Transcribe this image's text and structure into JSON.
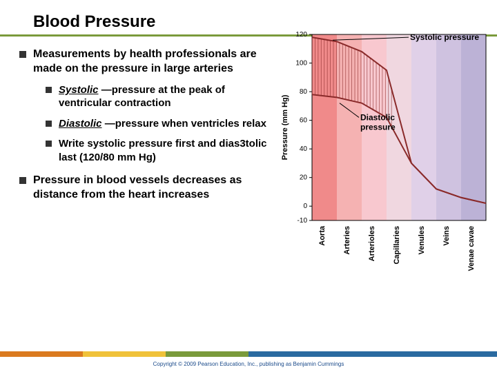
{
  "title": "Blood Pressure",
  "bullets": {
    "b1": "Measurements by health professionals are made on the pressure in large arteries",
    "b1a_term": "Systolic",
    "b1a_rest": " —pressure at the peak of ventricular contraction",
    "b1b_term": "Diastolic",
    "b1b_rest": " —pressure when ventricles relax",
    "b1c": "Write systolic pressure first and dias3tolic last (120/80 mm Hg)",
    "b2": "Pressure in blood vessels decreases as distance from the heart increases"
  },
  "chart": {
    "ylabel": "Pressure (mm Hg)",
    "yticks": [
      -10,
      0,
      20,
      40,
      60,
      80,
      100,
      120
    ],
    "ylim": [
      -10,
      120
    ],
    "xcats": [
      "Aorta",
      "Arteries",
      "Arterioles",
      "Capillaries",
      "Venules",
      "Veins",
      "Venae cavae"
    ],
    "band_colors": [
      "#f08a8a",
      "#f5b2b2",
      "#f8c8cf",
      "#f0d7e0",
      "#e0d0e8",
      "#cfc2e0",
      "#bcb2d6"
    ],
    "annot1": "Systolic pressure",
    "annot2": "Diastolic pressure",
    "systolic_line": [
      118,
      115,
      108,
      95,
      30,
      12,
      6,
      2
    ],
    "diastolic_line": [
      78,
      76,
      72,
      62,
      30,
      12,
      6,
      2
    ],
    "line_color": "#8a2a2a",
    "axis_color": "#000000",
    "tick_font": 10,
    "label_font": 11,
    "annot_font": 12
  },
  "footer": {
    "colors": [
      "#da7a1f",
      "#f0c23a",
      "#7a9a3b",
      "#2a6aa0"
    ],
    "widths": [
      120,
      120,
      120,
      360
    ],
    "copyright": "Copyright © 2009 Pearson Education, Inc., publishing as Benjamin Cummings"
  }
}
